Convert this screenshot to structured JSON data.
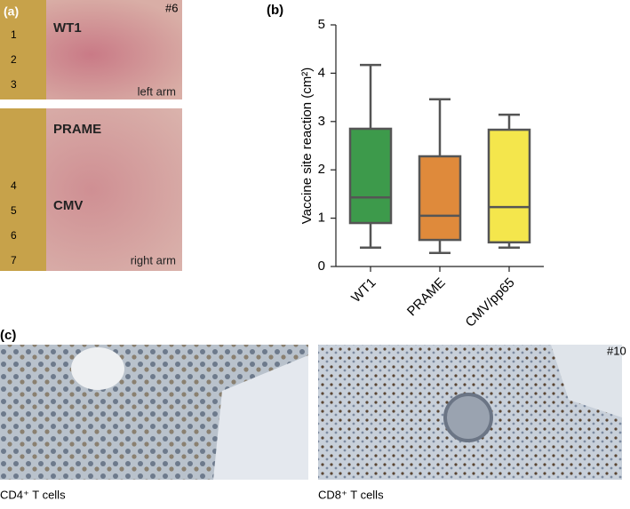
{
  "chart_data": {
    "type": "box",
    "ylabel": "Vaccine site reaction (cm²)",
    "categories": [
      "WT1",
      "PRAME",
      "CMV/pp65"
    ],
    "colors": [
      "#3d9a4b",
      "#df8a3b",
      "#f4e64c"
    ],
    "min": [
      0.39,
      0.28,
      0.39
    ],
    "q1": [
      0.9,
      0.55,
      0.5
    ],
    "median": [
      1.43,
      1.05,
      1.23
    ],
    "q3": [
      2.85,
      2.28,
      2.83
    ],
    "max": [
      4.17,
      3.46,
      3.14
    ],
    "ylim": [
      0,
      5
    ],
    "yticks": [
      0,
      1,
      2,
      3,
      4,
      5
    ]
  },
  "panels": {
    "a": {
      "label": "(a)",
      "id": "#6",
      "top": {
        "marker": "WT1",
        "arm": "left arm",
        "ruler": [
          "1",
          "2",
          "3"
        ]
      },
      "bottom": {
        "markers": [
          "PRAME",
          "CMV"
        ],
        "arm": "right arm",
        "ruler": [
          "4",
          "5",
          "6",
          "7"
        ]
      }
    },
    "b": {
      "label": "(b)"
    },
    "c": {
      "label": "(c)",
      "id": "#10",
      "captions": [
        "CD4⁺ T cells",
        "CD8⁺ T cells"
      ]
    }
  }
}
